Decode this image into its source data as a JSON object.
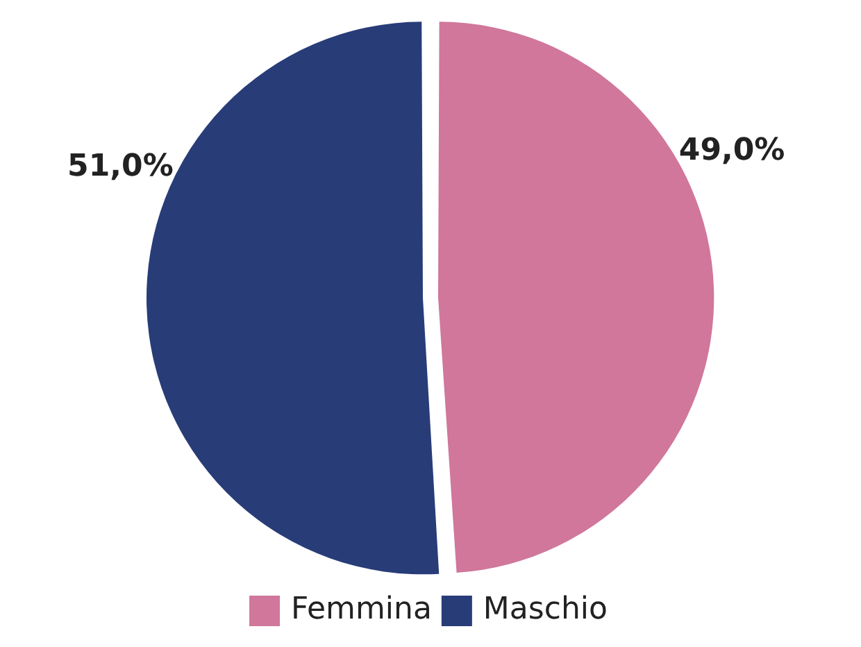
{
  "chart_data": {
    "type": "pie",
    "categories": [
      "Femmina",
      "Maschio"
    ],
    "values": [
      49,
      51
    ],
    "colors": [
      "#d0779b",
      "#283c78"
    ],
    "value_labels": [
      "49,0%",
      "51,0%"
    ],
    "legend": "bottom"
  }
}
